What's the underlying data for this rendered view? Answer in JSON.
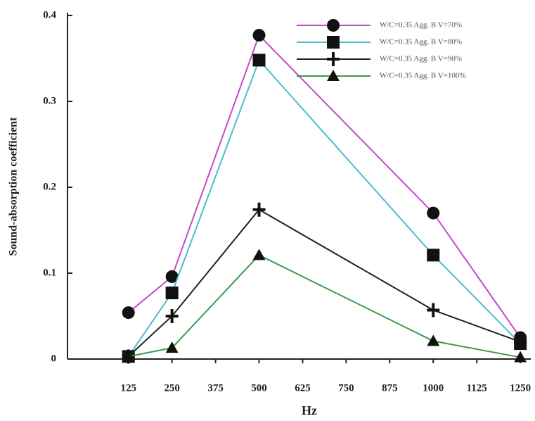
{
  "chart_data": {
    "type": "line",
    "x_label": "Hz",
    "y_label": "Sound-absorption coefficient",
    "x": [
      125,
      250,
      500,
      1000,
      1250
    ],
    "series": [
      {
        "name": "W/C=0.35 Agg. B V=70%",
        "color": "#c04cc8",
        "marker": "circle",
        "values": [
          0.054,
          0.096,
          0.377,
          0.17,
          0.025
        ]
      },
      {
        "name": "W/C=0.35 Agg. B V=80%",
        "color": "#4cbcd0",
        "marker": "square",
        "values": [
          0.003,
          0.077,
          0.348,
          0.121,
          0.018
        ]
      },
      {
        "name": "W/C=0.35 Agg. B V=90%",
        "color": "#222222",
        "marker": "plus",
        "values": [
          0.003,
          0.05,
          0.174,
          0.057,
          0.02
        ]
      },
      {
        "name": "W/C=0.35 Agg. B V=100%",
        "color": "#3c9a48",
        "marker": "triangle",
        "values": [
          0.003,
          0.013,
          0.121,
          0.021,
          0.002
        ]
      }
    ],
    "xlim": [
      -50,
      1280
    ],
    "xticks": [
      125,
      250,
      375,
      500,
      625,
      750,
      875,
      1000,
      1125,
      1250
    ],
    "ylim": [
      0,
      0.4
    ],
    "yticks": [
      0,
      0.1,
      0.2,
      0.3,
      0.4
    ],
    "legend": "upper right"
  }
}
